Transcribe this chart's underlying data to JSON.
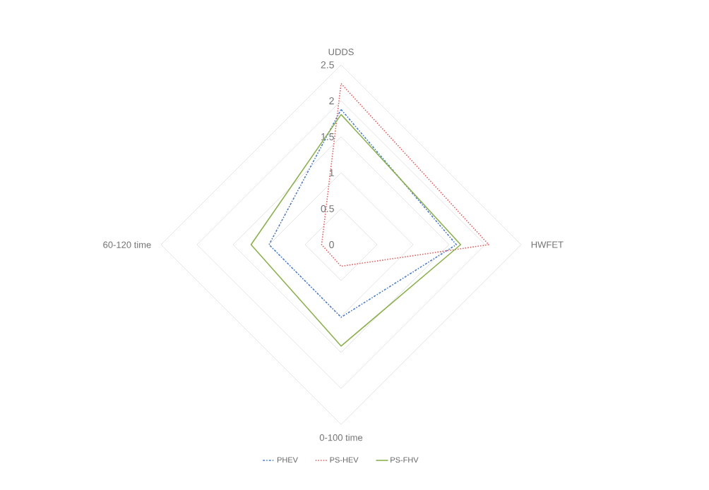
{
  "chart_data": {
    "type": "radar",
    "categories": [
      "UDDS",
      "HWFET",
      "0-100 time",
      "60-120 time"
    ],
    "series": [
      {
        "name": "PHEV",
        "color": "#4a7cc9",
        "line_style": "dashdot",
        "values": [
          1.88,
          1.6,
          1.01,
          1.0
        ]
      },
      {
        "name": "PS-HEV",
        "color": "#e06464",
        "line_style": "dotted",
        "values": [
          2.24,
          2.05,
          0.3,
          0.27
        ]
      },
      {
        "name": "PS-FHV",
        "color": "#8db150",
        "line_style": "solid",
        "values": [
          1.81,
          1.66,
          1.41,
          1.25
        ]
      }
    ],
    "ylim": [
      0,
      2.5
    ],
    "yticks": [
      0,
      0.5,
      1,
      1.5,
      2,
      2.5
    ],
    "grid": true,
    "legend": "bottom"
  }
}
